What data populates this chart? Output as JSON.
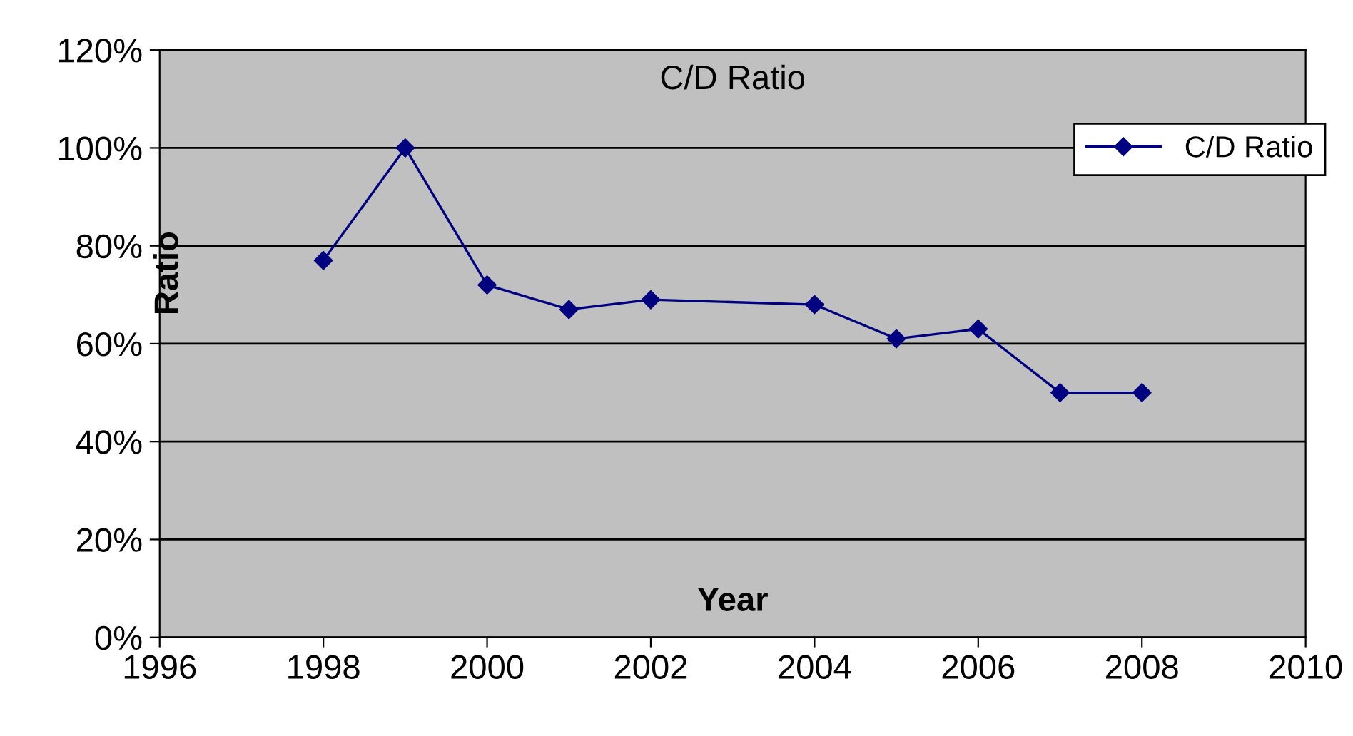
{
  "chart_data": {
    "type": "line",
    "title": "C/D Ratio",
    "xlabel": "Year",
    "ylabel": "Ratio",
    "x": [
      1998,
      1999,
      2000,
      2001,
      2002,
      2004,
      2005,
      2006,
      2007,
      2008
    ],
    "series": [
      {
        "name": "C/D Ratio",
        "color": "#000080",
        "values": [
          0.77,
          1.0,
          0.72,
          0.67,
          0.69,
          0.68,
          0.61,
          0.63,
          0.5,
          0.5
        ]
      }
    ],
    "xlim": [
      1996,
      2010
    ],
    "xticks": [
      1996,
      1998,
      2000,
      2002,
      2004,
      2006,
      2008,
      2010
    ],
    "ylim": [
      0,
      1.2
    ],
    "yticks": [
      {
        "value": 0,
        "label": "0%"
      },
      {
        "value": 0.2,
        "label": "20%"
      },
      {
        "value": 0.4,
        "label": "40%"
      },
      {
        "value": 0.6,
        "label": "60%"
      },
      {
        "value": 0.8,
        "label": "80%"
      },
      {
        "value": 1.0,
        "label": "100%"
      },
      {
        "value": 1.2,
        "label": "120%"
      }
    ],
    "grid": "y",
    "legend": "top right",
    "marker": "diamond",
    "line_style": "solid"
  }
}
